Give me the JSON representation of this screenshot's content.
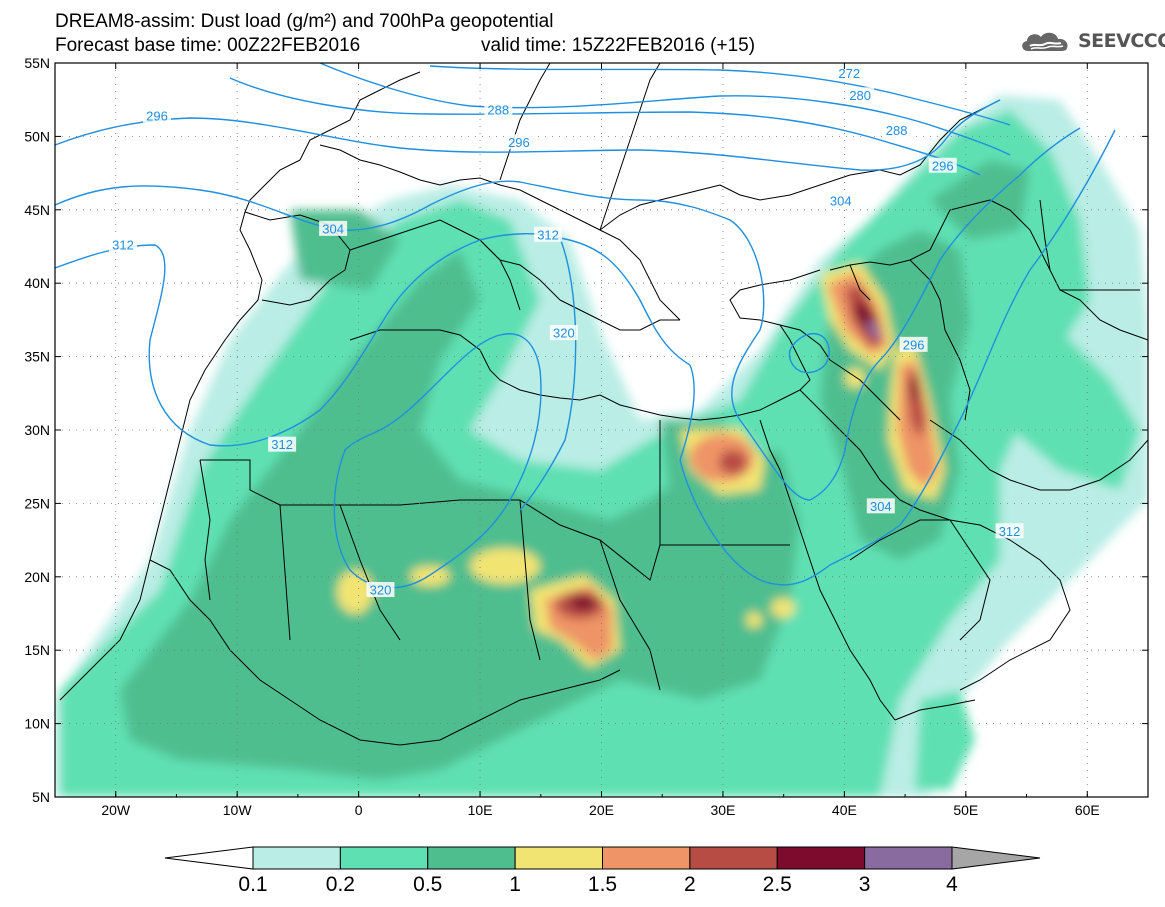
{
  "title": {
    "line1": "DREAM8-assim: Dust load (g/m²) and 700hPa geopotential",
    "line2_left": "Forecast base time: 00Z22FEB2016",
    "line2_right": "valid time: 15Z22FEB2016 (+15)"
  },
  "logo": {
    "text": "SEEVCCC",
    "icon": "cloud-logo-icon"
  },
  "axes": {
    "lon_labels": [
      "20W",
      "10W",
      "0",
      "10E",
      "20E",
      "30E",
      "40E",
      "50E",
      "60E"
    ],
    "lat_labels": [
      "55N",
      "50N",
      "45N",
      "40N",
      "35N",
      "30N",
      "25N",
      "20N",
      "15N",
      "10N",
      "5N"
    ],
    "lon_values": [
      -20,
      -10,
      0,
      10,
      20,
      30,
      40,
      50,
      60
    ],
    "lat_values": [
      55,
      50,
      45,
      40,
      35,
      30,
      25,
      20,
      15,
      10,
      5
    ],
    "lon_range": [
      -25,
      65
    ],
    "lat_range": [
      5,
      55
    ]
  },
  "contour_labels": [
    {
      "text": "272",
      "lon": 40.4,
      "lat": 54.3
    },
    {
      "text": "280",
      "lon": 41.3,
      "lat": 52.8
    },
    {
      "text": "288",
      "lon": 11.5,
      "lat": 51.8
    },
    {
      "text": "288",
      "lon": 44.3,
      "lat": 50.4
    },
    {
      "text": "296",
      "lon": -16.6,
      "lat": 51.4
    },
    {
      "text": "296",
      "lon": 13.2,
      "lat": 49.6
    },
    {
      "text": "296",
      "lon": 48.1,
      "lat": 48.0
    },
    {
      "text": "304",
      "lon": 39.7,
      "lat": 45.6
    },
    {
      "text": "304",
      "lon": -2.1,
      "lat": 43.7
    },
    {
      "text": "304",
      "lon": 43.0,
      "lat": 24.8
    },
    {
      "text": "312",
      "lon": -19.4,
      "lat": 42.6
    },
    {
      "text": "312",
      "lon": 15.6,
      "lat": 43.3
    },
    {
      "text": "312",
      "lon": -6.3,
      "lat": 29.0
    },
    {
      "text": "312",
      "lon": 53.6,
      "lat": 23.1
    },
    {
      "text": "320",
      "lon": 16.9,
      "lat": 36.6
    },
    {
      "text": "320",
      "lon": 1.8,
      "lat": 19.1
    },
    {
      "text": "296",
      "lon": 45.7,
      "lat": 35.8
    }
  ],
  "colorbar": {
    "labels": [
      "0.1",
      "0.2",
      "0.5",
      "1",
      "1.5",
      "2",
      "2.5",
      "3",
      "4"
    ],
    "colors": [
      "#b9ede5",
      "#5fe0b3",
      "#4fbe8f",
      "#f2e472",
      "#ee9466",
      "#b74c44",
      "#7d0b2d",
      "#8a6b9f"
    ],
    "under_color": "#ffffff",
    "over_color": "#a6a6a6"
  },
  "colors": {
    "contour": "#1f8fe0",
    "contour_label": "#1f8fe0",
    "border": "#000000"
  }
}
